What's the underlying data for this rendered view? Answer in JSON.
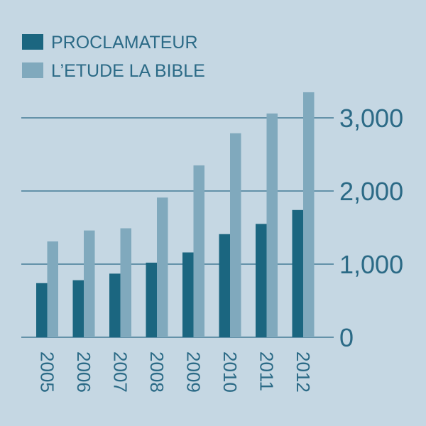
{
  "chart_data": {
    "type": "bar",
    "categories": [
      "2005",
      "2006",
      "2007",
      "2008",
      "2009",
      "2010",
      "2011",
      "2012"
    ],
    "series": [
      {
        "name": "PROCLAMATEUR",
        "color": "#1b6680",
        "values": [
          740,
          780,
          870,
          1020,
          1160,
          1410,
          1550,
          1740
        ]
      },
      {
        "name": "L’ETUDE LA BIBLE",
        "color": "#80a9bd",
        "values": [
          1310,
          1460,
          1490,
          1910,
          2350,
          2790,
          3060,
          3350
        ]
      }
    ],
    "yticks": [
      0,
      1000,
      2000,
      3000
    ],
    "ytick_labels": [
      "0",
      "1,000",
      "2,000",
      "3,000"
    ],
    "ylim": [
      0,
      3400
    ],
    "grid": true,
    "legend": "top-left",
    "background": "#c5d7e3",
    "text_color": "#2b6a86"
  }
}
